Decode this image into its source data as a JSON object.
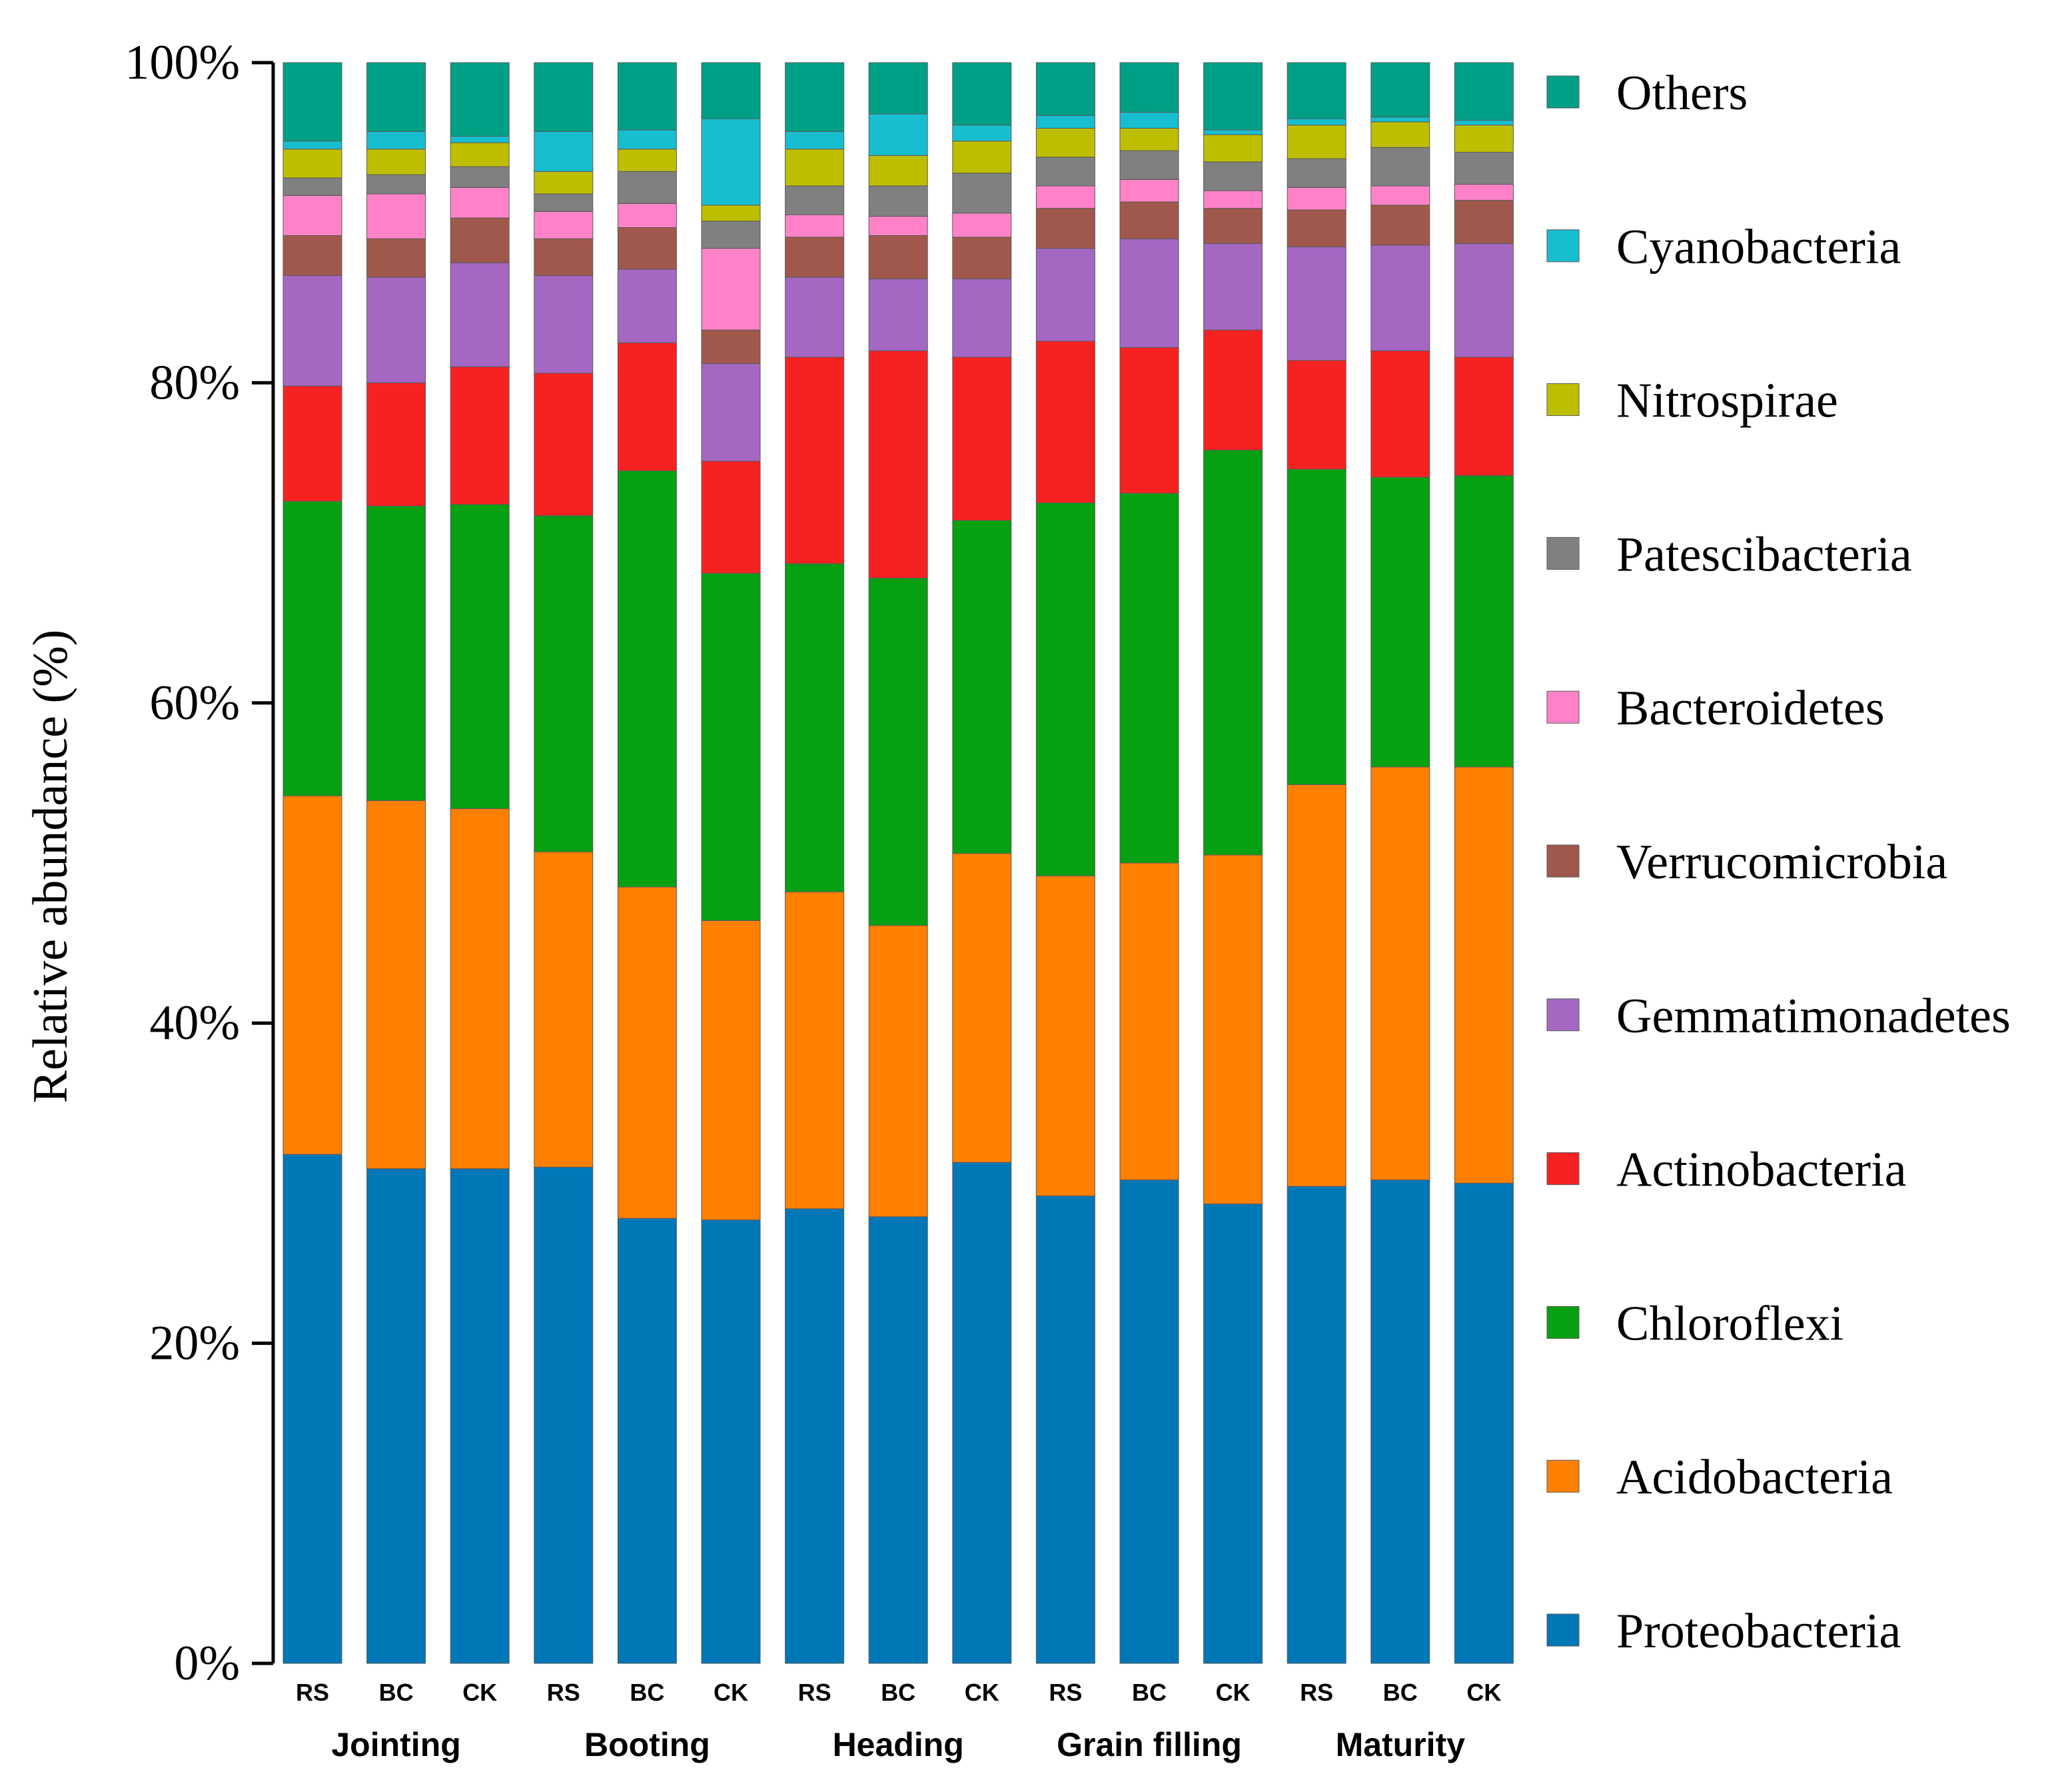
{
  "chart_data": {
    "type": "bar",
    "stacked": true,
    "ylabel": "Relative abundance (%)",
    "xlabel": "",
    "ylim": [
      0,
      100
    ],
    "y_ticks": [
      "0%",
      "20%",
      "40%",
      "60%",
      "80%",
      "100%"
    ],
    "y_tick_values": [
      0,
      20,
      40,
      60,
      80,
      100
    ],
    "categories": [
      "RS",
      "BC",
      "CK",
      "RS",
      "BC",
      "CK",
      "RS",
      "BC",
      "CK",
      "RS",
      "BC",
      "CK",
      "RS",
      "BC",
      "CK"
    ],
    "groups": [
      "Jointing",
      "Booting",
      "Heading",
      "Grain filling",
      "Maturity"
    ],
    "legend_position": "right",
    "series": [
      {
        "name": "Proteobacteria",
        "color": "#0077B6",
        "values": [
          31.8,
          30.9,
          30.9,
          31.0,
          27.8,
          27.7,
          28.4,
          27.9,
          31.3,
          29.2,
          30.2,
          28.7,
          29.8,
          30.2,
          30.0
        ]
      },
      {
        "name": "Acidobacteria",
        "color": "#FF7F00",
        "values": [
          22.4,
          23.0,
          22.5,
          19.7,
          20.7,
          18.7,
          19.8,
          18.2,
          19.3,
          20.0,
          19.8,
          21.8,
          25.1,
          25.8,
          26.0
        ]
      },
      {
        "name": "Chloroflexi",
        "color": "#06A012",
        "values": [
          18.4,
          18.4,
          19.0,
          21.0,
          26.0,
          21.7,
          20.5,
          21.7,
          20.8,
          23.3,
          23.1,
          25.3,
          19.7,
          18.1,
          18.2
        ]
      },
      {
        "name": "Actinobacteria",
        "color": "#F62222",
        "values": [
          7.2,
          7.7,
          8.6,
          8.9,
          8.0,
          7.0,
          12.9,
          14.2,
          10.2,
          10.1,
          9.1,
          7.5,
          6.8,
          7.9,
          7.4
        ]
      },
      {
        "name": "Gemmatimonadetes",
        "color": "#A468C2",
        "values": [
          6.9,
          6.6,
          6.5,
          6.1,
          4.6,
          6.1,
          5.0,
          4.5,
          4.9,
          5.8,
          6.8,
          5.4,
          7.1,
          6.6,
          7.1
        ]
      },
      {
        "name": "Verrucomicrobia",
        "color": "#A0584C",
        "values": [
          2.5,
          2.4,
          2.8,
          2.3,
          2.6,
          2.1,
          2.5,
          2.7,
          2.6,
          2.5,
          2.3,
          2.2,
          2.3,
          2.5,
          2.7
        ]
      },
      {
        "name": "Bacteroidetes",
        "color": "#FF82C8",
        "values": [
          2.5,
          2.8,
          1.9,
          1.7,
          1.5,
          5.1,
          1.4,
          1.2,
          1.5,
          1.4,
          1.4,
          1.1,
          1.4,
          1.2,
          1.0
        ]
      },
      {
        "name": "Patescibacteria",
        "color": "#808080",
        "values": [
          1.1,
          1.2,
          1.3,
          1.1,
          2.0,
          1.7,
          1.8,
          1.9,
          2.5,
          1.8,
          1.8,
          1.8,
          1.8,
          2.4,
          2.0
        ]
      },
      {
        "name": "Nitrospirae",
        "color": "#BEBE00",
        "values": [
          1.8,
          1.6,
          1.5,
          1.4,
          1.4,
          1.0,
          2.3,
          1.9,
          2.0,
          1.8,
          1.4,
          1.7,
          2.1,
          1.6,
          1.7
        ]
      },
      {
        "name": "Cyanobacteria",
        "color": "#17BECF",
        "values": [
          0.5,
          1.1,
          0.4,
          2.5,
          1.2,
          5.4,
          1.1,
          2.6,
          1.0,
          0.8,
          1.0,
          0.3,
          0.4,
          0.3,
          0.3
        ]
      },
      {
        "name": "Others",
        "color": "#00A087",
        "values": [
          4.9,
          4.3,
          4.6,
          4.3,
          4.2,
          3.5,
          4.3,
          3.2,
          3.9,
          3.3,
          3.1,
          4.2,
          3.5,
          3.4,
          3.6
        ]
      }
    ]
  }
}
